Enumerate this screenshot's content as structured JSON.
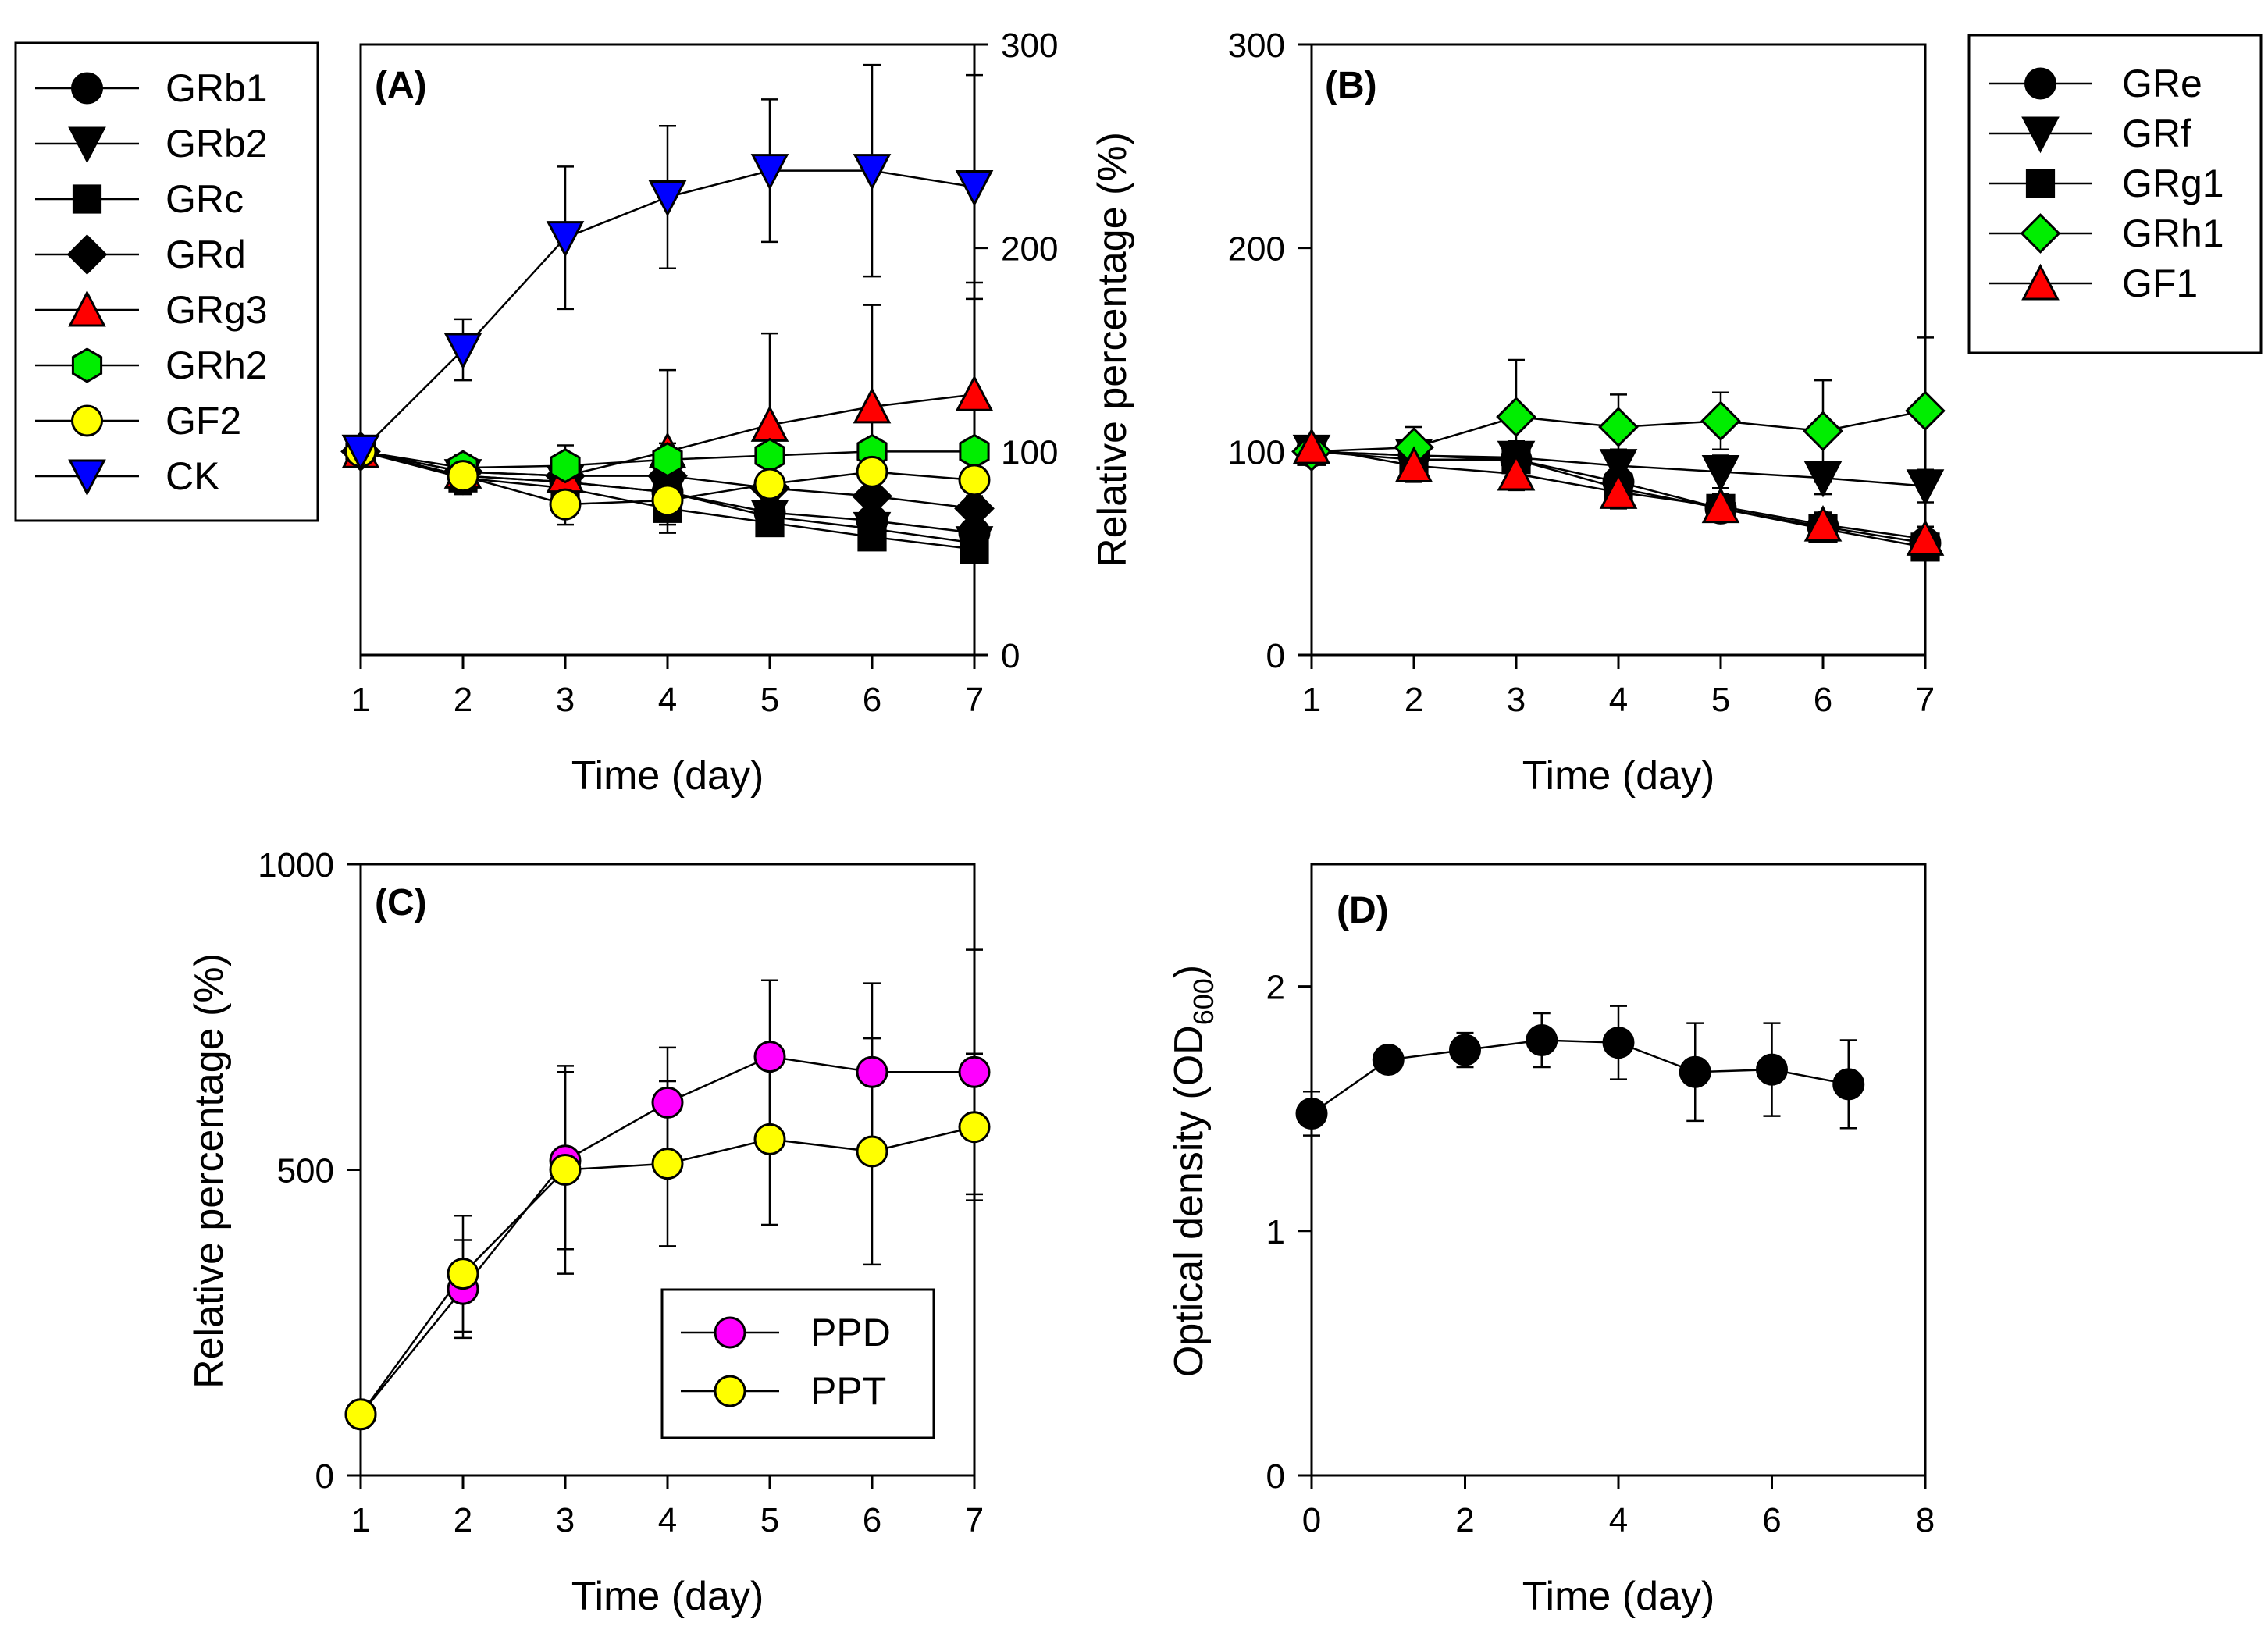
{
  "chart_data": [
    {
      "panel": "(A)",
      "type": "line",
      "xlabel": "Time (day)",
      "ylabel": "Relative percentage (%)",
      "xlim": [
        1,
        7
      ],
      "ylim": [
        0,
        300
      ],
      "xticks": [
        "1",
        "2",
        "3",
        "4",
        "5",
        "6",
        "7"
      ],
      "yticks": [
        "0",
        "100",
        "200",
        "300"
      ],
      "y_axis_side": "right",
      "legend_position": "outside-left",
      "x": [
        1,
        2,
        3,
        4,
        5,
        6,
        7
      ],
      "series": [
        {
          "name": "GRb1",
          "marker": "circle",
          "color": "#000000",
          "values": [
            100,
            88,
            85,
            80,
            70,
            66,
            60
          ],
          "errors": [
            4,
            8,
            8,
            8,
            6,
            6,
            6
          ]
        },
        {
          "name": "GRb2",
          "marker": "triangle-down",
          "color": "#000000",
          "values": [
            100,
            88,
            85,
            80,
            68,
            62,
            55
          ],
          "errors": [
            4,
            8,
            8,
            8,
            6,
            6,
            6
          ]
        },
        {
          "name": "GRc",
          "marker": "square",
          "color": "#000000",
          "values": [
            100,
            87,
            82,
            72,
            65,
            58,
            52
          ],
          "errors": [
            4,
            8,
            8,
            8,
            6,
            6,
            6
          ]
        },
        {
          "name": "GRd",
          "marker": "diamond",
          "color": "#000000",
          "values": [
            100,
            90,
            88,
            88,
            82,
            78,
            72
          ],
          "errors": [
            4,
            8,
            8,
            8,
            6,
            6,
            6
          ]
        },
        {
          "name": "GRg3",
          "marker": "triangle-up",
          "color": "#ff0000",
          "values": [
            100,
            90,
            88,
            100,
            113,
            122,
            128
          ],
          "errors": [
            4,
            6,
            8,
            40,
            45,
            50,
            55
          ]
        },
        {
          "name": "GRh2",
          "marker": "hexagon",
          "color": "#00ee00",
          "values": [
            100,
            92,
            93,
            96,
            98,
            100,
            100
          ],
          "errors": [
            4,
            6,
            10,
            8,
            6,
            6,
            6
          ]
        },
        {
          "name": "GF2",
          "marker": "circle",
          "color": "#ffff00",
          "values": [
            100,
            88,
            74,
            76,
            84,
            90,
            86
          ],
          "errors": [
            4,
            8,
            10,
            10,
            8,
            8,
            8
          ]
        },
        {
          "name": "CK",
          "marker": "triangle-down",
          "color": "#0000ff",
          "values": [
            100,
            150,
            205,
            225,
            238,
            238,
            230
          ],
          "errors": [
            4,
            15,
            35,
            35,
            35,
            52,
            55
          ]
        }
      ]
    },
    {
      "panel": "(B)",
      "type": "line",
      "xlabel": "Time (day)",
      "ylabel": "Relative percentage (%)",
      "xlim": [
        1,
        7
      ],
      "ylim": [
        0,
        300
      ],
      "xticks": [
        "1",
        "2",
        "3",
        "4",
        "5",
        "6",
        "7"
      ],
      "yticks": [
        "0",
        "100",
        "200",
        "300"
      ],
      "legend_position": "outside-right",
      "x": [
        1,
        2,
        3,
        4,
        5,
        6,
        7
      ],
      "series": [
        {
          "name": "GRe",
          "marker": "circle",
          "color": "#000000",
          "values": [
            100,
            98,
            96,
            85,
            72,
            63,
            55
          ],
          "errors": [
            4,
            6,
            8,
            8,
            6,
            6,
            6
          ]
        },
        {
          "name": "GRf",
          "marker": "triangle-down",
          "color": "#000000",
          "values": [
            100,
            98,
            97,
            93,
            90,
            87,
            83
          ],
          "errors": [
            4,
            6,
            8,
            8,
            8,
            8,
            8
          ]
        },
        {
          "name": "GRg1",
          "marker": "square",
          "color": "#000000",
          "values": [
            100,
            96,
            96,
            82,
            72,
            62,
            53
          ],
          "errors": [
            4,
            6,
            8,
            8,
            6,
            6,
            6
          ]
        },
        {
          "name": "GRh1",
          "marker": "diamond",
          "color": "#00ee00",
          "values": [
            100,
            102,
            117,
            112,
            115,
            110,
            120
          ],
          "errors": [
            4,
            10,
            28,
            16,
            14,
            25,
            36
          ]
        },
        {
          "name": "GF1",
          "marker": "triangle-up",
          "color": "#ff0000",
          "values": [
            102,
            93,
            89,
            80,
            73,
            64,
            57
          ],
          "errors": [
            4,
            8,
            8,
            8,
            6,
            6,
            6
          ]
        }
      ]
    },
    {
      "panel": "(C)",
      "type": "line",
      "xlabel": "Time (day)",
      "ylabel": "Relative percentage (%)",
      "xlim": [
        1,
        7
      ],
      "ylim": [
        0,
        1000
      ],
      "xticks": [
        "1",
        "2",
        "3",
        "4",
        "5",
        "6",
        "7"
      ],
      "yticks": [
        "0",
        "500",
        "1000"
      ],
      "legend_position": "inside-bottom-right",
      "x": [
        1,
        2,
        3,
        4,
        5,
        6,
        7
      ],
      "series": [
        {
          "name": "PPD",
          "marker": "circle",
          "color": "#ff00ff",
          "values": [
            100,
            305,
            515,
            610,
            685,
            660,
            660
          ],
          "errors": [
            5,
            80,
            145,
            90,
            125,
            145,
            200
          ]
        },
        {
          "name": "PPT",
          "marker": "circle",
          "color": "#ffff00",
          "values": [
            100,
            330,
            500,
            510,
            550,
            530,
            570
          ],
          "errors": [
            5,
            95,
            170,
            135,
            140,
            185,
            120
          ]
        }
      ]
    },
    {
      "panel": "(D)",
      "type": "line",
      "xlabel": "Time (day)",
      "ylabel": "Optical density (OD",
      "ylabel_sub": "600",
      "ylabel_end": ")",
      "xlim": [
        0,
        8
      ],
      "ylim": [
        0,
        2.5
      ],
      "xticks": [
        "0",
        "2",
        "4",
        "6",
        "8"
      ],
      "yticks": [
        "0",
        "1",
        "2"
      ],
      "x": [
        0,
        1,
        2,
        3,
        4,
        5,
        6,
        7
      ],
      "series": [
        {
          "name": "OD600",
          "marker": "circle",
          "color": "#000000",
          "values": [
            1.48,
            1.7,
            1.74,
            1.78,
            1.77,
            1.65,
            1.66,
            1.6
          ],
          "errors": [
            0.09,
            0.03,
            0.07,
            0.11,
            0.15,
            0.2,
            0.19,
            0.18
          ]
        }
      ]
    }
  ]
}
